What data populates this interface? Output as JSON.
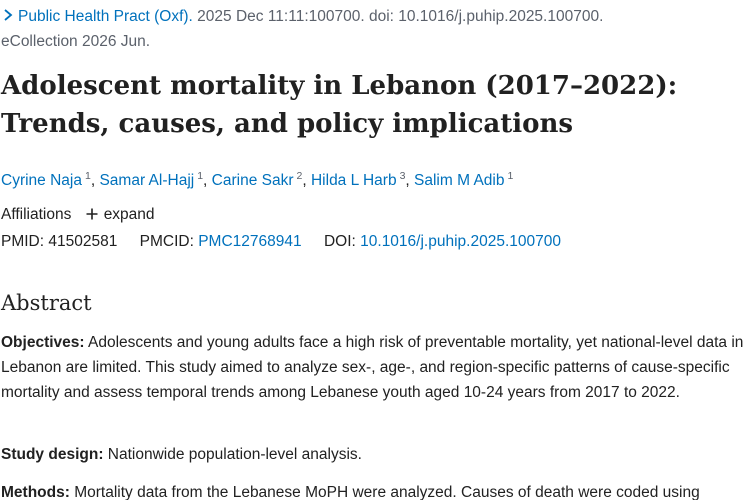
{
  "citation": {
    "journal": "Public Health Pract (Oxf).",
    "details_line1": "2025 Dec 11:11:100700. doi: 10.1016/j.puhip.2025.100700.",
    "details_line2": "eCollection 2026 Jun."
  },
  "title_line1": "Adolescent mortality in Lebanon (2017–2022):",
  "title_line2": "Trends, causes, and policy implications",
  "authors": [
    {
      "name": "Cyrine Naja",
      "aff": "1"
    },
    {
      "name": "Samar Al-Hajj",
      "aff": "1"
    },
    {
      "name": "Carine Sakr",
      "aff": "2"
    },
    {
      "name": "Hilda L Harb",
      "aff": "3"
    },
    {
      "name": "Salim M Adib",
      "aff": "1"
    }
  ],
  "affiliations": {
    "label": "Affiliations",
    "expand_label": "expand"
  },
  "identifiers": {
    "pmid_label": "PMID:",
    "pmid": "41502581",
    "pmcid_label": "PMCID:",
    "pmcid": "PMC12768941",
    "doi_label": "DOI:",
    "doi": "10.1016/j.puhip.2025.100700"
  },
  "abstract": {
    "heading": "Abstract",
    "objectives_label": "Objectives:",
    "objectives_text": " Adolescents and young adults face a high risk of preventable mortality, yet national-level data in Lebanon are limited. This study aimed to analyze sex-, age-, and region-specific patterns of cause-specific mortality and assess temporal trends among Lebanese youth aged 10-24 years from 2017 to 2022.",
    "design_label": "Study design:",
    "design_text": " Nationwide population-level analysis.",
    "methods_label": "Methods:",
    "methods_text": " Mortality data from the Lebanese MoPH were analyzed. Causes of death were coded using"
  },
  "colors": {
    "link": "#0071bc",
    "text": "#212121",
    "muted": "#5b616b"
  }
}
